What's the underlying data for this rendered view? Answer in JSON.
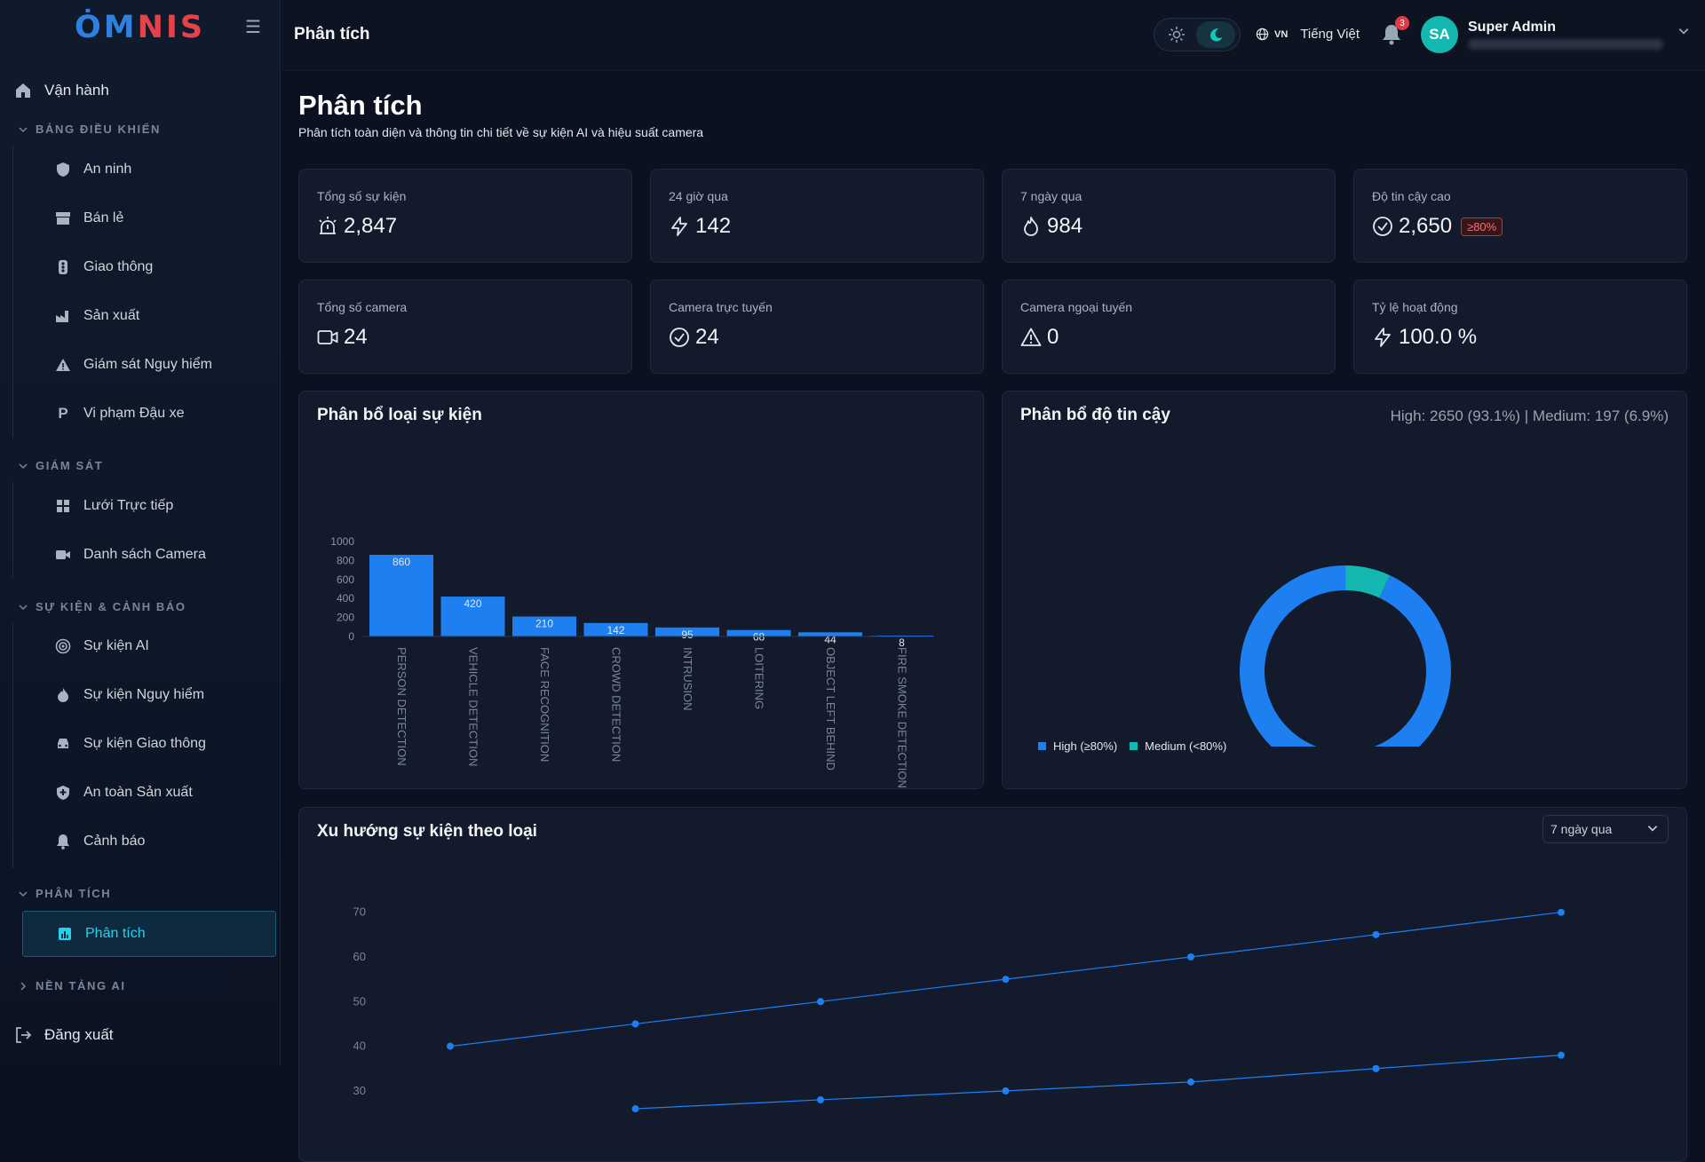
{
  "brand": {
    "logo_text": "OMNIS"
  },
  "sidebar": {
    "top_item": "Vận hành",
    "sections": [
      {
        "title": "BẢNG ĐIỀU KHIỂN",
        "items": [
          "An ninh",
          "Bán lẻ",
          "Giao thông",
          "Sản xuất",
          "Giám sát Nguy hiểm",
          "Vi phạm Đậu xe"
        ]
      },
      {
        "title": "GIÁM SÁT",
        "items": [
          "Lưới Trực tiếp",
          "Danh sách Camera"
        ]
      },
      {
        "title": "SỰ KIỆN & CẢNH BÁO",
        "items": [
          "Sự kiện AI",
          "Sự kiện Nguy hiểm",
          "Sự kiện Giao thông",
          "An toàn Sản xuất",
          "Cảnh báo"
        ]
      },
      {
        "title": "PHÂN TÍCH",
        "items": [
          "Phân tích"
        ]
      },
      {
        "title": "NỀN TẢNG AI",
        "items": []
      }
    ],
    "logout": "Đăng xuất",
    "active_item": "Phân tích"
  },
  "header": {
    "title": "Phân tích",
    "lang_code": "VN",
    "lang_label": "Tiếng Việt",
    "notif_count": "3",
    "avatar_initials": "SA",
    "user_name": "Super Admin"
  },
  "page": {
    "title": "Phân tích",
    "subtitle": "Phân tích toàn diện và thông tin chi tiết về sự kiện AI và hiệu suất camera"
  },
  "stats": [
    {
      "label": "Tổng số sự kiện",
      "value": "2,847",
      "icon": "siren-icon"
    },
    {
      "label": "24 giờ qua",
      "value": "142",
      "icon": "bolt-icon"
    },
    {
      "label": "7 ngày qua",
      "value": "984",
      "icon": "flame-icon"
    },
    {
      "label": "Độ tin cậy cao",
      "value": "2,650",
      "icon": "check-circle-icon",
      "badge": "≥80%"
    },
    {
      "label": "Tổng số camera",
      "value": "24",
      "icon": "camera-icon"
    },
    {
      "label": "Camera trực tuyến",
      "value": "24",
      "icon": "check-circle-icon"
    },
    {
      "label": "Camera ngoại tuyến",
      "value": "0",
      "icon": "warning-icon"
    },
    {
      "label": "Tỷ lệ hoạt động",
      "value": "100.0 %",
      "icon": "bolt-icon"
    }
  ],
  "event_chart_title": "Phân bổ loại sự kiện",
  "confidence_chart_title": "Phân bổ độ tin cậy",
  "confidence_summary": "High: 2650 (93.1%) | Medium: 197 (6.9%)",
  "trend": {
    "title": "Xu hướng sự kiện theo loại",
    "range_label": "7 ngày qua"
  },
  "colors": {
    "accent": "#1e7ff0",
    "teal": "#14b8b0",
    "active": "#22d3ee",
    "danger": "#e23a45"
  },
  "chart_data": [
    {
      "type": "bar",
      "title": "Phân bổ loại sự kiện",
      "categories": [
        "PERSON DETECTION",
        "VEHICLE DETECTION",
        "FACE RECOGNITION",
        "CROWD DETECTION",
        "INTRUSION",
        "LOITERING",
        "OBJECT LEFT BEHIND",
        "FIRE SMOKE DETECTION"
      ],
      "values": [
        860,
        420,
        210,
        142,
        95,
        68,
        44,
        8
      ],
      "ylim": [
        0,
        1000
      ],
      "yticks": [
        0,
        200,
        400,
        600,
        800,
        1000
      ],
      "color": "#1e7ff0"
    },
    {
      "type": "pie",
      "title": "Phân bổ độ tin cậy",
      "donut": true,
      "labels": [
        "High (≥80%)",
        "Medium (<80%)"
      ],
      "values": [
        2650,
        197
      ],
      "colors": [
        "#1e7ff0",
        "#14b8b0"
      ],
      "legend": "bottom-left"
    },
    {
      "type": "line",
      "title": "Xu hướng sự kiện theo loại",
      "yticks": [
        30,
        40,
        50,
        60,
        70
      ],
      "ylim": [
        30,
        72
      ],
      "series": [
        {
          "values": [
            40,
            45,
            50,
            55,
            60,
            65,
            70
          ],
          "color": "#1e7ff0"
        },
        {
          "values": [
            26,
            28,
            30,
            32,
            35,
            38
          ],
          "color": "#1e7ff0"
        }
      ]
    }
  ]
}
